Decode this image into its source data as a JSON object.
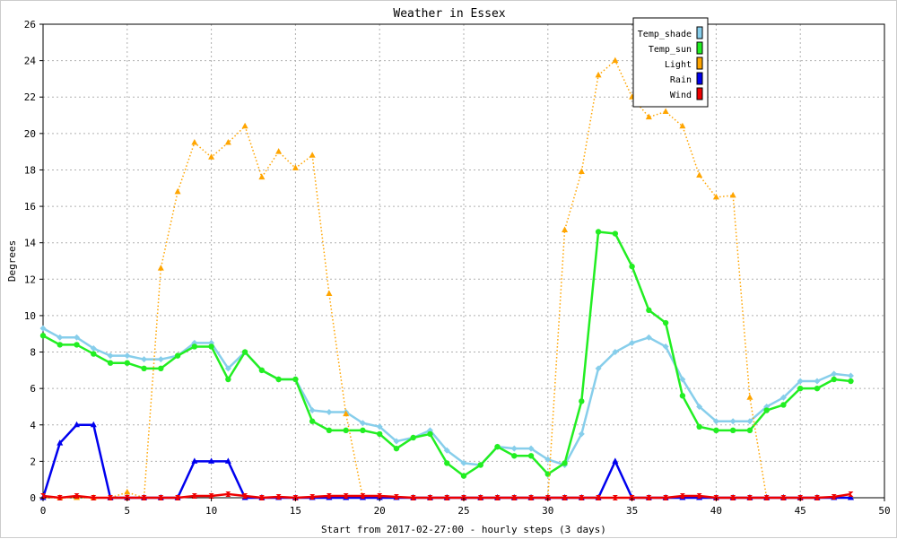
{
  "chart_data": {
    "type": "line",
    "title": "Weather in Essex",
    "xlabel": "Start from 2017-02-27:00 - hourly steps (3 days)",
    "ylabel": "Degrees",
    "xlim": [
      0,
      50
    ],
    "ylim": [
      0,
      26
    ],
    "x_ticks": [
      0,
      5,
      10,
      15,
      20,
      25,
      30,
      35,
      40,
      45,
      50
    ],
    "y_ticks": [
      0,
      2,
      4,
      6,
      8,
      10,
      12,
      14,
      16,
      18,
      20,
      22,
      24,
      26
    ],
    "grid": true,
    "legend_position": "top-right",
    "x": [
      0,
      1,
      2,
      3,
      4,
      5,
      6,
      7,
      8,
      9,
      10,
      11,
      12,
      13,
      14,
      15,
      16,
      17,
      18,
      19,
      20,
      21,
      22,
      23,
      24,
      25,
      26,
      27,
      28,
      29,
      30,
      31,
      32,
      33,
      34,
      35,
      36,
      37,
      38,
      39,
      40,
      41,
      42,
      43,
      44,
      45,
      46,
      47,
      48
    ],
    "series": [
      {
        "name": "Temp_shade",
        "color": "#87ceeb",
        "marker": "diamond",
        "style": "solid",
        "values": [
          9.3,
          8.8,
          8.8,
          8.2,
          7.8,
          7.8,
          7.6,
          7.6,
          7.8,
          8.5,
          8.5,
          7.1,
          8.0,
          7.0,
          6.5,
          6.5,
          4.8,
          4.7,
          4.7,
          4.1,
          3.9,
          3.1,
          3.3,
          3.7,
          2.6,
          1.9,
          1.8,
          2.8,
          2.7,
          2.7,
          2.1,
          1.8,
          3.5,
          7.1,
          8.0,
          8.5,
          8.8,
          8.3,
          6.5,
          5.0,
          4.2,
          4.2,
          4.2,
          5.0,
          5.5,
          6.4,
          6.4,
          6.8,
          6.7
        ]
      },
      {
        "name": "Temp_sun",
        "color": "#22ee22",
        "marker": "circle",
        "style": "solid",
        "values": [
          8.9,
          8.4,
          8.4,
          7.9,
          7.4,
          7.4,
          7.1,
          7.1,
          7.8,
          8.3,
          8.3,
          6.5,
          8.0,
          7.0,
          6.5,
          6.5,
          4.2,
          3.7,
          3.7,
          3.7,
          3.5,
          2.7,
          3.3,
          3.5,
          1.9,
          1.2,
          1.8,
          2.8,
          2.3,
          2.3,
          1.3,
          1.9,
          5.3,
          14.6,
          14.5,
          12.7,
          10.3,
          9.6,
          5.6,
          3.9,
          3.7,
          3.7,
          3.7,
          4.8,
          5.1,
          6.0,
          6.0,
          6.5,
          6.4
        ]
      },
      {
        "name": "Light",
        "color": "#ffa500",
        "marker": "triangle",
        "style": "dotted",
        "values": [
          0,
          0,
          0,
          0,
          0,
          0.3,
          0,
          12.6,
          16.8,
          19.5,
          18.7,
          19.5,
          20.4,
          17.6,
          19.0,
          18.1,
          18.8,
          11.2,
          4.6,
          0,
          0,
          0,
          0,
          0,
          0,
          0,
          0,
          0,
          0,
          0,
          0,
          14.7,
          17.9,
          23.2,
          24.0,
          22.0,
          20.9,
          21.2,
          20.4,
          17.7,
          16.5,
          16.6,
          5.5,
          0,
          0,
          0,
          0,
          0,
          0
        ]
      },
      {
        "name": "Rain",
        "color": "#0000ee",
        "marker": "triangle",
        "style": "solid",
        "values": [
          0,
          3,
          4,
          4,
          0,
          0,
          0,
          0,
          0,
          2,
          2,
          2,
          0,
          0,
          0,
          0,
          0,
          0,
          0,
          0,
          0,
          0,
          0,
          0,
          0,
          0,
          0,
          0,
          0,
          0,
          0,
          0,
          0,
          0,
          2,
          0,
          0,
          0,
          0,
          0,
          0,
          0,
          0,
          0,
          0,
          0,
          0,
          0,
          0
        ]
      },
      {
        "name": "Wind",
        "color": "#ee0000",
        "marker": "hourglass",
        "style": "solid",
        "values": [
          0.1,
          0,
          0.1,
          0,
          0,
          0,
          0,
          0,
          0,
          0.1,
          0.1,
          0.2,
          0.1,
          0,
          0.05,
          0,
          0.05,
          0.1,
          0.1,
          0.1,
          0.1,
          0.05,
          0,
          0,
          0,
          0,
          0,
          0,
          0,
          0,
          0,
          0,
          0,
          0,
          0,
          0,
          0,
          0,
          0.1,
          0.1,
          0,
          0,
          0,
          0,
          0,
          0,
          0,
          0.05,
          0.2
        ]
      }
    ]
  }
}
